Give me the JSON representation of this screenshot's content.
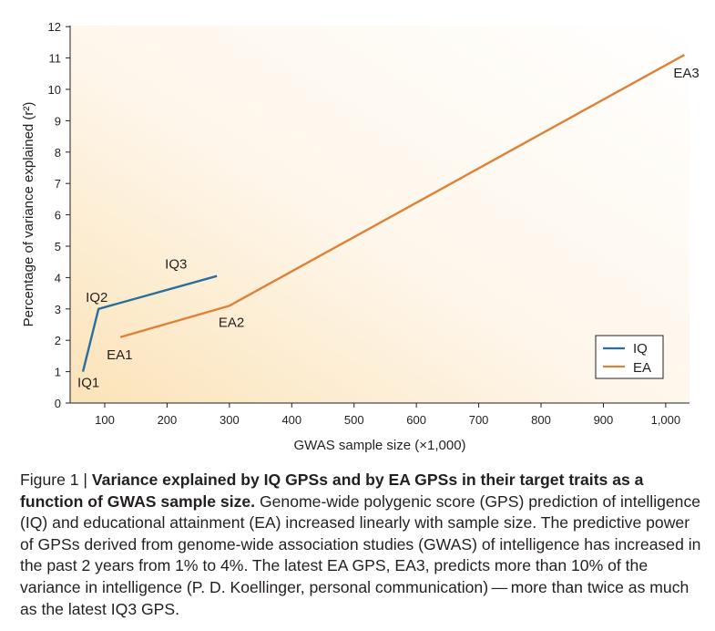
{
  "chart_data": {
    "type": "line",
    "title": "",
    "xlabel": "GWAS sample size (×1,000)",
    "ylabel": "Percentage of variance  explained (r²)",
    "xlim": [
      50,
      1050
    ],
    "ylim": [
      0,
      12
    ],
    "x_ticks": [
      100,
      200,
      300,
      400,
      500,
      600,
      700,
      800,
      900,
      1000
    ],
    "x_tick_labels": [
      "100",
      "200",
      "300",
      "400",
      "500",
      "600",
      "700",
      "800",
      "900",
      "1,000"
    ],
    "y_ticks": [
      0,
      1,
      2,
      3,
      4,
      5,
      6,
      7,
      8,
      9,
      10,
      11,
      12
    ],
    "y_tick_labels": [
      "0",
      "1",
      "2",
      "3",
      "4",
      "5",
      "6",
      "7",
      "8",
      "9",
      "10",
      "11",
      "12"
    ],
    "series": [
      {
        "name": "IQ",
        "color": "#2a6d9e",
        "points": [
          {
            "label": "IQ1",
            "x": 65,
            "y": 1.0
          },
          {
            "label": "IQ2",
            "x": 90,
            "y": 3.0
          },
          {
            "label": "IQ3",
            "x": 280,
            "y": 4.05
          }
        ]
      },
      {
        "name": "EA",
        "color": "#df8037",
        "points": [
          {
            "label": "EA1",
            "x": 125,
            "y": 2.1
          },
          {
            "label": "EA2",
            "x": 300,
            "y": 3.1
          },
          {
            "label": "EA3",
            "x": 1030,
            "y": 11.1
          }
        ]
      }
    ],
    "legend_position": "bottom-right",
    "background_gradient": [
      "#fbe3b8",
      "#ffffff"
    ]
  },
  "caption": {
    "figure_label": "Figure 1 | ",
    "bold_title": "Variance explained by IQ GPSs and by EA GPSs in their target traits as a function of GWAS sample size.",
    "body": " Genome-wide polygenic score (GPS) prediction of intelligence (IQ) and educational attainment (EA) increased linearly with sample size. The predictive power of GPSs derived from genome-wide association studies (GWAS) of intelligence has increased in the past 2 years from 1% to 4%. The latest EA GPS, EA3, predicts more than 10% of the variance in intelligence (P. D. Koellinger, personal communication) — more than twice as much as the latest IQ3 GPS."
  }
}
